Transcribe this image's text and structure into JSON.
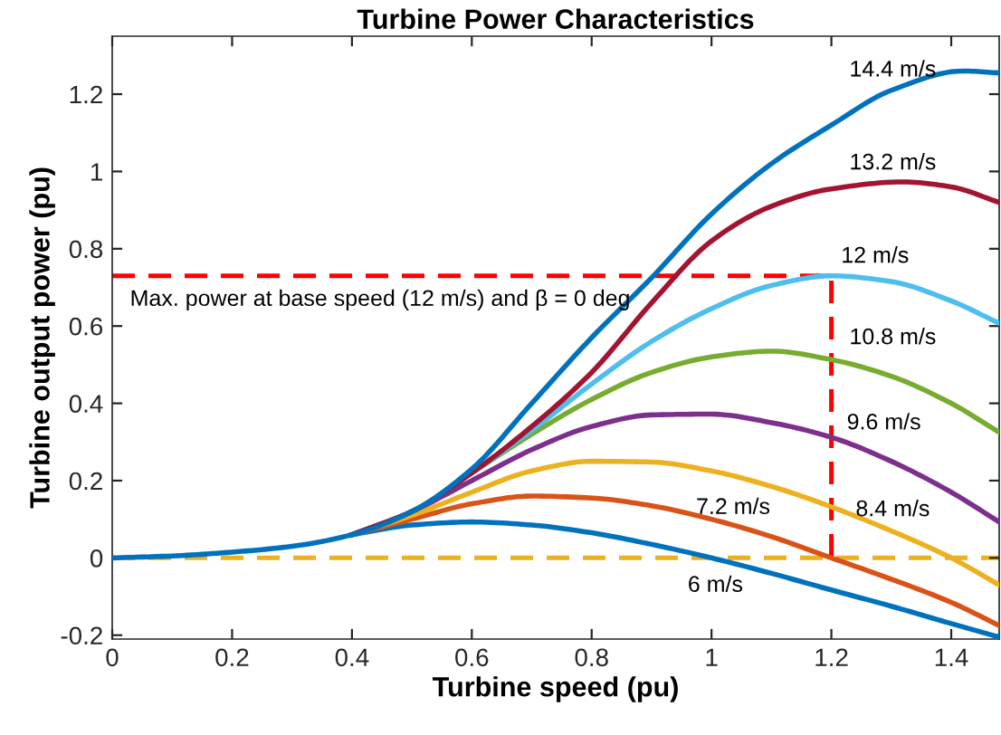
{
  "chart_data": {
    "type": "line",
    "title": "Turbine Power Characteristics",
    "xlabel": "Turbine speed (pu)",
    "ylabel": "Turbine output power (pu)",
    "xlim": [
      0,
      1.48
    ],
    "ylim": [
      -0.21,
      1.35
    ],
    "xticks": [
      0,
      0.2,
      0.4,
      0.6,
      0.8,
      1,
      1.2,
      1.4
    ],
    "yticks": [
      -0.2,
      0,
      0.2,
      0.4,
      0.6,
      0.8,
      1,
      1.2
    ],
    "grid": false,
    "legend": false,
    "line_style": "solid",
    "marker": "none",
    "ref_lines": [
      {
        "axis": "y",
        "value": 0,
        "color": "#edb120",
        "line_style": "dashed"
      }
    ],
    "annotations": [
      "Max. power at base speed (12 m/s) and β = 0 deg"
    ],
    "series": [
      {
        "name": "6 m/s",
        "color": "#0072bd",
        "x": [
          0.4,
          0.5,
          0.6,
          0.7,
          0.8,
          0.9,
          1.0,
          1.1,
          1.2,
          1.3,
          1.4,
          1.48
        ],
        "values": [
          0.06,
          0.085,
          0.093,
          0.085,
          0.065,
          0.035,
          0,
          -0.04,
          -0.083,
          -0.125,
          -0.17,
          -0.205
        ]
      },
      {
        "name": "7.2 m/s",
        "color": "#d95319",
        "x": [
          0.4,
          0.5,
          0.6,
          0.7,
          0.8,
          0.9,
          1.0,
          1.1,
          1.2,
          1.3,
          1.4,
          1.48
        ],
        "values": [
          0.06,
          0.1,
          0.14,
          0.16,
          0.155,
          0.135,
          0.1,
          0.055,
          0,
          -0.055,
          -0.115,
          -0.175
        ]
      },
      {
        "name": "8.4 m/s",
        "color": "#edb120",
        "x": [
          0.4,
          0.5,
          0.6,
          0.7,
          0.8,
          0.9,
          1.0,
          1.1,
          1.2,
          1.3,
          1.4,
          1.48
        ],
        "values": [
          0.06,
          0.11,
          0.17,
          0.225,
          0.25,
          0.248,
          0.225,
          0.185,
          0.132,
          0.07,
          0,
          -0.07
        ]
      },
      {
        "name": "9.6 m/s",
        "color": "#7e2f8e",
        "x": [
          0.4,
          0.5,
          0.6,
          0.7,
          0.8,
          0.9,
          1.0,
          1.1,
          1.2,
          1.3,
          1.4,
          1.48
        ],
        "values": [
          0.06,
          0.12,
          0.2,
          0.28,
          0.34,
          0.37,
          0.372,
          0.35,
          0.312,
          0.25,
          0.17,
          0.093
        ]
      },
      {
        "name": "10.8 m/s",
        "color": "#77ac30",
        "x": [
          0.4,
          0.5,
          0.6,
          0.7,
          0.8,
          0.9,
          1.0,
          1.1,
          1.2,
          1.3,
          1.4,
          1.48
        ],
        "values": [
          0.06,
          0.12,
          0.22,
          0.32,
          0.41,
          0.48,
          0.52,
          0.535,
          0.513,
          0.47,
          0.4,
          0.325
        ]
      },
      {
        "name": "12 m/s",
        "color": "#4dbeee",
        "x": [
          0.4,
          0.5,
          0.6,
          0.7,
          0.8,
          0.9,
          1.0,
          1.1,
          1.2,
          1.3,
          1.4,
          1.48
        ],
        "values": [
          0.06,
          0.12,
          0.22,
          0.33,
          0.45,
          0.56,
          0.645,
          0.705,
          0.73,
          0.715,
          0.665,
          0.607
        ]
      },
      {
        "name": "13.2 m/s",
        "color": "#a2142f",
        "x": [
          0.4,
          0.5,
          0.6,
          0.7,
          0.8,
          0.9,
          1.0,
          1.1,
          1.2,
          1.32,
          1.4,
          1.48
        ],
        "values": [
          0.06,
          0.12,
          0.22,
          0.34,
          0.48,
          0.66,
          0.82,
          0.91,
          0.955,
          0.973,
          0.96,
          0.92
        ]
      },
      {
        "name": "14.4 m/s",
        "color": "#0072bd",
        "x": [
          0,
          0.1,
          0.2,
          0.3,
          0.4,
          0.5,
          0.6,
          0.7,
          0.8,
          0.9,
          1.0,
          1.1,
          1.2,
          1.3,
          1.42,
          1.48
        ],
        "values": [
          0,
          0.005,
          0.015,
          0.03,
          0.06,
          0.12,
          0.23,
          0.4,
          0.57,
          0.725,
          0.89,
          1.02,
          1.12,
          1.21,
          1.26,
          1.255
        ]
      },
      {
        "color": "#ff0000",
        "line_style": "dashed",
        "x": [
          0,
          1.2,
          1.2
        ],
        "values": [
          0.73,
          0.73,
          0
        ]
      }
    ]
  }
}
